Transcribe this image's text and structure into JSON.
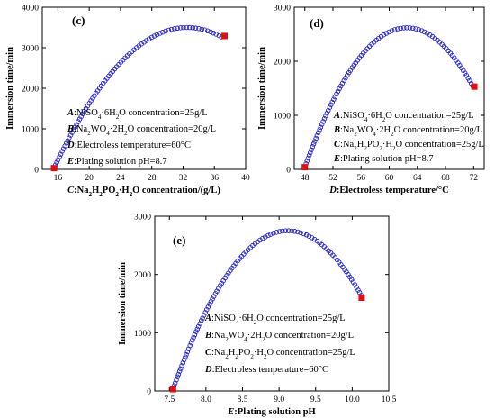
{
  "chart_data": [
    {
      "id": "c",
      "type": "scatter",
      "panel_label": "(c)",
      "xlabel_var": "C",
      "xlabel_text": ":Na2H2PO2·H2O concentration/(g/L)",
      "ylabel": "Immersion time/min",
      "xlim": [
        14,
        40
      ],
      "ylim": [
        0,
        4000
      ],
      "xticks": [
        16,
        20,
        24,
        28,
        32,
        36,
        40
      ],
      "yticks": [
        0,
        1000,
        2000,
        3000,
        4000
      ],
      "curve": {
        "x_start": 15.5,
        "x_end": 37.0,
        "vertex_x": 32.5,
        "vertex_y": 3500,
        "y_start": 30
      },
      "endpoints": [
        {
          "x": 15.5,
          "y": 30
        },
        {
          "x": 37.3,
          "y": 3290
        }
      ],
      "annotations": [
        {
          "var": "A",
          "text": ":NiSO4·6H2O concentration=25g/L"
        },
        {
          "var": "B",
          "text": ":Na2WO4·2H2O concentration=20g/L"
        },
        {
          "var": "D",
          "text": ":Electroless temperature=60°C"
        },
        {
          "var": "E",
          "text": ":Plating solution pH=8.7"
        }
      ]
    },
    {
      "id": "d",
      "type": "scatter",
      "panel_label": "(d)",
      "xlabel_var": "D",
      "xlabel_text": ":Electroless temperature/°C",
      "ylabel": "Immersion time/min",
      "xlim": [
        46.5,
        73.5
      ],
      "ylim": [
        0,
        3000
      ],
      "xticks": [
        48,
        52,
        56,
        60,
        64,
        68,
        72
      ],
      "yticks": [
        0,
        1000,
        2000,
        3000
      ],
      "curve": {
        "x_start": 48.0,
        "x_end": 72.0,
        "vertex_x": 62.5,
        "vertex_y": 2620,
        "y_start": 40
      },
      "endpoints": [
        {
          "x": 48.0,
          "y": 40
        },
        {
          "x": 72.1,
          "y": 1530
        }
      ],
      "annotations": [
        {
          "var": "A",
          "text": ":NiSO4·6H2O concentration=25g/L"
        },
        {
          "var": "B",
          "text": ":Na2WO4·2H2O concentration=20g/L"
        },
        {
          "var": "C",
          "text": ":Na2H2PO2·H2O concentration=25g/L"
        },
        {
          "var": "E",
          "text": ":Plating solution pH=8.7"
        }
      ]
    },
    {
      "id": "e",
      "type": "scatter",
      "panel_label": "(e)",
      "xlabel_var": "E",
      "xlabel_text": ":Plating solution pH",
      "ylabel": "Immersion time/min",
      "xlim": [
        7.3,
        10.5
      ],
      "ylim": [
        0,
        3000
      ],
      "xticks": [
        7.5,
        8.0,
        8.5,
        9.0,
        9.5,
        10.0,
        10.5
      ],
      "yticks": [
        0,
        1000,
        2000,
        3000
      ],
      "curve": {
        "x_start": 7.55,
        "x_end": 10.13,
        "vertex_x": 9.12,
        "vertex_y": 2750,
        "y_start": 35
      },
      "endpoints": [
        {
          "x": 7.55,
          "y": 30
        },
        {
          "x": 10.13,
          "y": 1600
        }
      ],
      "annotations": [
        {
          "var": "A",
          "text": ":NiSO4·6H2O concentration=25g/L"
        },
        {
          "var": "B",
          "text": ":Na2WO4·2H2O concentration=20g/L"
        },
        {
          "var": "C",
          "text": ":Na2H2PO2·H2O concentration=25g/L"
        },
        {
          "var": "D",
          "text": ":Electroless temperature=60°C"
        }
      ]
    }
  ],
  "colors": {
    "curve": "#2222cc",
    "endpoint": "#e01010",
    "axis": "#000000"
  }
}
